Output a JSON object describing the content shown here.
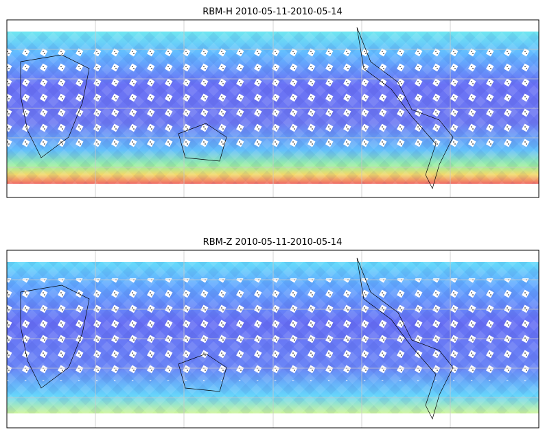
{
  "panels": [
    {
      "title": "RBM-H 2010-05-11-2010-05-14"
    },
    {
      "title": "RBM-Z 2010-05-11-2010-05-14"
    }
  ]
}
